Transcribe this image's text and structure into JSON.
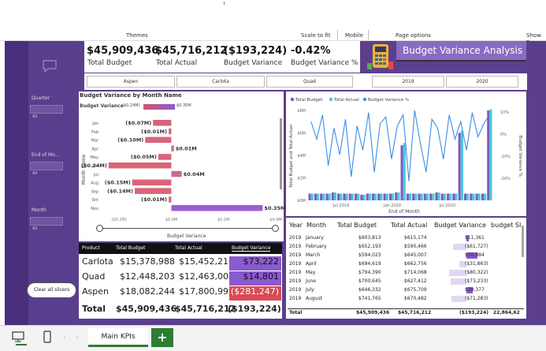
{
  "ribbon": {
    "themes": "Themes",
    "scale_to_fit": "Scale to fit",
    "mobile": "Mobile",
    "page_options": "Page options",
    "show": "Show p"
  },
  "slicers": {
    "quarter": {
      "label": "Quarter",
      "value": "All"
    },
    "end_of_month": {
      "label": "End of Mo...",
      "value": "All"
    },
    "month": {
      "label": "Month",
      "value": "All"
    },
    "clear_label": "Clear all slicers"
  },
  "kpis": [
    {
      "value": "$45,909,436",
      "label": "Total Budget"
    },
    {
      "value": "$45,716,212",
      "label": "Total Actual"
    },
    {
      "value": "($193,224)",
      "label": "Budget Variance"
    },
    {
      "value": "-0.42%",
      "label": "Budget Variance %"
    }
  ],
  "title": "Budget Variance Analysis",
  "product_filters": [
    "Aspen",
    "Carlota",
    "Quad"
  ],
  "year_filters": [
    "2019",
    "2020"
  ],
  "bar_chart": {
    "title": "Budget Variance by Month Name",
    "legend_label": "Budget Variance",
    "legend_min": "($0.24M)",
    "legend_max": "$0.35M",
    "yaxis": "Month Name",
    "xaxis": "Budget Variance",
    "ticks": [
      "($0.2M)",
      "$0.0M",
      "$0.2M",
      "$0.4M"
    ],
    "scroll_labels": []
  },
  "chart_data": [
    {
      "type": "bar",
      "title": "Budget Variance by Month Name",
      "xlabel": "Budget Variance",
      "ylabel": "Month Name",
      "categories": [
        "Jan",
        "Feb",
        "Mar",
        "Apr",
        "May",
        "Jun",
        "Jul",
        "Aug",
        "Sep",
        "Oct",
        "Nov"
      ],
      "values": [
        -0.07,
        -0.01,
        -0.1,
        0.01,
        -0.05,
        -0.24,
        0.04,
        -0.15,
        -0.14,
        -0.01,
        0.35
      ],
      "labels": [
        "($0.07M)",
        "($0.01M)",
        "($0.10M)",
        "$0.01M",
        "($0.05M)",
        "($0.24M)",
        "$0.04M",
        "($0.15M)",
        "($0.14M)",
        "($0.01M)",
        "$0.35M"
      ],
      "xlim": [
        -0.3,
        0.4
      ]
    },
    {
      "type": "bar",
      "title": "",
      "xlabel": "End of Month",
      "ylabel": "Total Budget and Total Actual",
      "series_names": [
        "Total Budget",
        "Total Actual",
        "Budget Variance %"
      ],
      "colors": [
        "#7b5cc4",
        "#4cc9d8",
        "#3a8ee6"
      ],
      "yticks": [
        "$0M",
        "$2M",
        "$4M",
        "$6M",
        "$8M"
      ],
      "y2ticks": [
        "10%",
        "0%",
        "-10%",
        "-20%"
      ],
      "y2label": "Budget Variance %",
      "xticks": [
        "Jul 2019",
        "Jan 2020",
        "Jul 2020"
      ],
      "budget": [
        0.6,
        0.6,
        0.6,
        0.6,
        0.7,
        0.6,
        0.6,
        0.6,
        0.6,
        0.5,
        0.6,
        0.6,
        0.6,
        0.6,
        0.6,
        0.7,
        4.9,
        0.6,
        0.6,
        0.6,
        0.6,
        0.6,
        0.7,
        0.6,
        0.6,
        0.6,
        6.0,
        0.6,
        0.6,
        0.6,
        0.6,
        8.0
      ],
      "actual": [
        0.6,
        0.6,
        0.6,
        0.6,
        0.7,
        0.6,
        0.6,
        0.6,
        0.6,
        0.5,
        0.6,
        0.6,
        0.6,
        0.6,
        0.6,
        0.7,
        5.1,
        0.6,
        0.6,
        0.6,
        0.6,
        0.6,
        0.7,
        0.6,
        0.6,
        0.6,
        6.2,
        0.6,
        0.6,
        0.6,
        0.6,
        8.1
      ],
      "variance_pct": [
        5,
        -3,
        8,
        -15,
        2,
        -10,
        6,
        -20,
        3,
        -8,
        9,
        -18,
        4,
        7,
        -12,
        3,
        8,
        -22,
        10,
        -5,
        -18,
        6,
        2,
        -12,
        8,
        -3,
        5,
        -8,
        9,
        -2,
        4,
        8
      ]
    }
  ],
  "product_table": {
    "headers": [
      "Product",
      "Total Budget",
      "Total Actual",
      "Budget Variance"
    ],
    "rows": [
      [
        "Carlota",
        "$15,378,988",
        "$15,452,210",
        "$73,222"
      ],
      [
        "Quad",
        "$12,448,203",
        "$12,463,004",
        "$14,801"
      ],
      [
        "Aspen",
        "$18,082,244",
        "$17,800,997",
        "($281,247)"
      ]
    ],
    "total": [
      "Total",
      "$45,909,436",
      "$45,716,212",
      "($193,224)"
    ],
    "variance_colors": [
      "#8a5ad0",
      "#8a5ad0",
      "#d94a55"
    ]
  },
  "month_table": {
    "headers": [
      "Year",
      "Month",
      "Total Budget",
      "Total Actual",
      "Budget Variance",
      "budget SI"
    ],
    "rows": [
      [
        "2019",
        "January",
        "$603,813",
        "$615,174",
        "$11,361"
      ],
      [
        "2019",
        "February",
        "$652,193",
        "$590,466",
        "($61,727)"
      ],
      [
        "2019",
        "March",
        "$594,023",
        "$645,007",
        "$50,984"
      ],
      [
        "2019",
        "April",
        "$694,619",
        "$662,756",
        "($31,863)"
      ],
      [
        "2019",
        "May",
        "$794,390",
        "$714,068",
        "($80,322)"
      ],
      [
        "2019",
        "June",
        "$700,645",
        "$627,412",
        "($73,233)"
      ],
      [
        "2019",
        "July",
        "$646,332",
        "$675,709",
        "$29,377"
      ],
      [
        "2019",
        "August",
        "$741,765",
        "$670,482",
        "($71,283)"
      ]
    ],
    "total": [
      "Total",
      "",
      "$45,909,436",
      "$45,716,212",
      "($193,224)",
      "22,864,62"
    ]
  },
  "bottom": {
    "tab_label": "Main KPIs",
    "add": "+"
  }
}
